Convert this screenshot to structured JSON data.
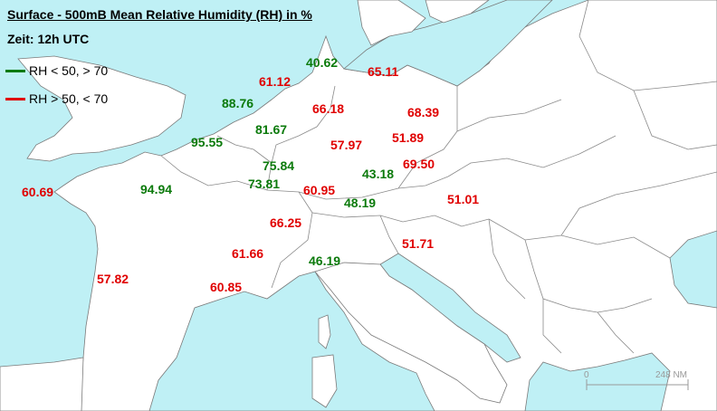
{
  "header": {
    "title": "Surface - 500mB Mean Relative Humidity (RH) in %",
    "time": "Zeit: 12h UTC"
  },
  "legend": [
    {
      "label": "RH < 50, > 70",
      "color": "#0b7a0b"
    },
    {
      "label": "RH > 50, < 70",
      "color": "#e00000"
    }
  ],
  "colors": {
    "sea": "#bff0f5",
    "land": "#ffffff",
    "border": "#7a7a7a",
    "green": "#0b7a0b",
    "red": "#e00000"
  },
  "stations": [
    {
      "value": "40.62",
      "color": "green"
    },
    {
      "value": "65.11",
      "color": "red"
    },
    {
      "value": "61.12",
      "color": "red"
    },
    {
      "value": "88.76",
      "color": "green"
    },
    {
      "value": "66.18",
      "color": "red"
    },
    {
      "value": "68.39",
      "color": "red"
    },
    {
      "value": "81.67",
      "color": "green"
    },
    {
      "value": "95.55",
      "color": "green"
    },
    {
      "value": "57.97",
      "color": "red"
    },
    {
      "value": "51.89",
      "color": "red"
    },
    {
      "value": "75.84",
      "color": "green"
    },
    {
      "value": "43.18",
      "color": "green"
    },
    {
      "value": "69.50",
      "color": "red"
    },
    {
      "value": "60.69",
      "color": "red"
    },
    {
      "value": "94.94",
      "color": "green"
    },
    {
      "value": "73.81",
      "color": "green"
    },
    {
      "value": "60.95",
      "color": "red"
    },
    {
      "value": "51.01",
      "color": "red"
    },
    {
      "value": "48.19",
      "color": "green"
    },
    {
      "value": "66.25",
      "color": "red"
    },
    {
      "value": "51.71",
      "color": "red"
    },
    {
      "value": "61.66",
      "color": "red"
    },
    {
      "value": "46.19",
      "color": "green"
    },
    {
      "value": "57.82",
      "color": "red"
    },
    {
      "value": "60.85",
      "color": "red"
    }
  ],
  "scale_bar": {
    "start": "0",
    "end": "248 NM"
  }
}
